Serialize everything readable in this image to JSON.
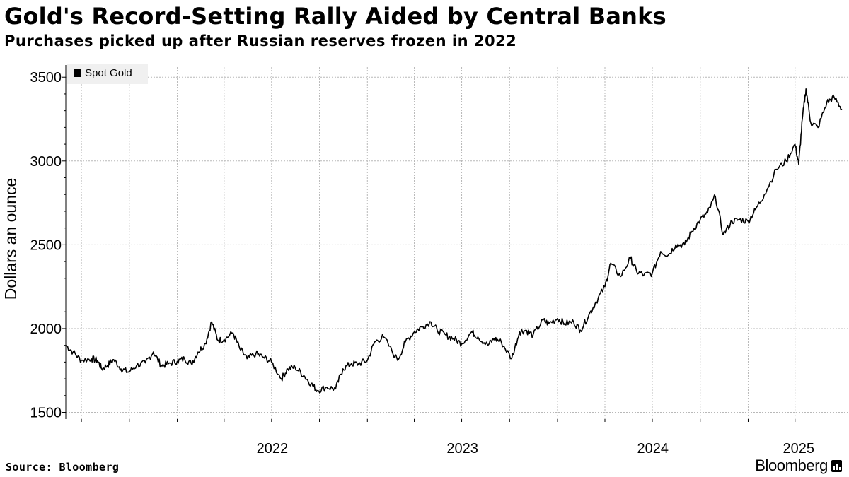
{
  "title": "Gold's Record-Setting Rally Aided by Central Banks",
  "subtitle": "Purchases picked up after Russian reserves frozen in 2022",
  "source": "Source: Bloomberg",
  "brand": "Bloomberg",
  "colors": {
    "line": "#000000",
    "grid": "#b8b8b8",
    "legend_bg": "#f0f0f0"
  },
  "chart_data": {
    "type": "line",
    "ylabel": "Dollars an ounce",
    "ylim": [
      1460,
      3560
    ],
    "xlim": [
      "2021-06-01",
      "2025-06-30"
    ],
    "yticks": [
      1500,
      2000,
      2500,
      3000,
      3500
    ],
    "xtick_labels": [
      {
        "label": "2022",
        "date": "2022-01-01"
      },
      {
        "label": "2023",
        "date": "2023-01-01"
      },
      {
        "label": "2024",
        "date": "2024-01-01"
      },
      {
        "label": "2025",
        "date": "2025-01-01"
      }
    ],
    "grid": true,
    "legend_position": "top-left",
    "series": [
      {
        "name": "Spot Gold",
        "x": [
          "2021-06-01",
          "2021-06-15",
          "2021-07-01",
          "2021-07-20",
          "2021-08-01",
          "2021-08-09",
          "2021-08-20",
          "2021-09-01",
          "2021-09-15",
          "2021-09-29",
          "2021-10-15",
          "2021-11-01",
          "2021-11-16",
          "2021-12-01",
          "2021-12-15",
          "2022-01-01",
          "2022-01-15",
          "2022-01-28",
          "2022-02-10",
          "2022-02-24",
          "2022-03-08",
          "2022-03-20",
          "2022-04-01",
          "2022-04-18",
          "2022-05-01",
          "2022-05-15",
          "2022-06-01",
          "2022-06-15",
          "2022-07-01",
          "2022-07-20",
          "2022-08-01",
          "2022-08-15",
          "2022-09-01",
          "2022-09-15",
          "2022-09-27",
          "2022-10-15",
          "2022-11-01",
          "2022-11-15",
          "2022-12-01",
          "2022-12-15",
          "2023-01-01",
          "2023-01-15",
          "2023-02-01",
          "2023-02-28",
          "2023-03-15",
          "2023-04-01",
          "2023-04-15",
          "2023-05-03",
          "2023-05-15",
          "2023-06-01",
          "2023-06-15",
          "2023-07-01",
          "2023-07-20",
          "2023-08-01",
          "2023-08-20",
          "2023-09-01",
          "2023-09-15",
          "2023-10-05",
          "2023-10-20",
          "2023-11-01",
          "2023-11-15",
          "2023-12-04",
          "2023-12-15",
          "2024-01-01",
          "2024-01-15",
          "2024-02-01",
          "2024-02-14",
          "2024-03-01",
          "2024-03-15",
          "2024-04-01",
          "2024-04-12",
          "2024-05-01",
          "2024-05-20",
          "2024-06-01",
          "2024-06-15",
          "2024-07-01",
          "2024-07-17",
          "2024-08-01",
          "2024-08-15",
          "2024-09-01",
          "2024-09-15",
          "2024-10-01",
          "2024-10-15",
          "2024-10-30",
          "2024-11-14",
          "2024-12-01",
          "2024-12-15",
          "2025-01-01",
          "2025-01-15",
          "2025-02-01",
          "2025-02-24",
          "2025-03-15",
          "2025-04-01",
          "2025-04-08",
          "2025-04-15",
          "2025-04-22",
          "2025-05-01",
          "2025-05-15",
          "2025-06-01",
          "2025-06-15",
          "2025-06-30"
        ],
        "values": [
          1900,
          1860,
          1810,
          1820,
          1810,
          1760,
          1780,
          1815,
          1760,
          1740,
          1780,
          1795,
          1860,
          1780,
          1790,
          1805,
          1820,
          1790,
          1860,
          1910,
          2040,
          1930,
          1935,
          1975,
          1880,
          1820,
          1850,
          1830,
          1800,
          1700,
          1760,
          1770,
          1720,
          1670,
          1630,
          1650,
          1640,
          1760,
          1790,
          1790,
          1810,
          1920,
          1950,
          1810,
          1920,
          1980,
          2010,
          2040,
          1990,
          1960,
          1940,
          1910,
          1980,
          1950,
          1900,
          1940,
          1920,
          1820,
          1980,
          1990,
          1960,
          2050,
          2030,
          2060,
          2030,
          2040,
          1990,
          2080,
          2160,
          2250,
          2390,
          2310,
          2420,
          2340,
          2320,
          2330,
          2460,
          2440,
          2500,
          2500,
          2580,
          2650,
          2690,
          2790,
          2560,
          2640,
          2650,
          2640,
          2710,
          2800,
          2950,
          3000,
          3100,
          2980,
          3250,
          3430,
          3230,
          3200,
          3350,
          3380,
          3310
        ]
      }
    ]
  }
}
